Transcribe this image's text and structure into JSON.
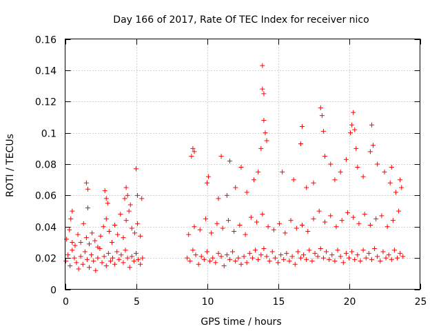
{
  "chart_data": {
    "type": "scatter",
    "title": "Day 166 of 2017, Rate Of TEC Index for receiver nico",
    "xlabel": "GPS time / hours",
    "ylabel": "ROTI / TECUs",
    "xlim": [
      0,
      25
    ],
    "ylim": [
      0,
      0.16
    ],
    "x_ticks": [
      0,
      5,
      10,
      15,
      20,
      25
    ],
    "x_tick_labels": [
      "0",
      "5",
      "10",
      "15",
      "20",
      "25"
    ],
    "y_ticks": [
      0,
      0.02,
      0.04,
      0.06,
      0.08,
      0.1,
      0.12,
      0.14,
      0.16
    ],
    "y_tick_labels": [
      "0",
      "0.02",
      "0.04",
      "0.06",
      "0.08",
      "0.1",
      "0.12",
      "0.14",
      "0.16"
    ],
    "grid": true,
    "legend": false,
    "marker": "+",
    "color": "#ff0000",
    "data_gap_hours": [
      5.6,
      8.5
    ],
    "series": [
      {
        "x": [
          0.05,
          0.2,
          0.35,
          0.5,
          0.65,
          0.8,
          0.95,
          1.1,
          1.25,
          1.4,
          1.55,
          1.7,
          1.85,
          2.0,
          2.15,
          2.3,
          2.45,
          2.6,
          2.75,
          2.9,
          3.05,
          3.2,
          3.35,
          3.5,
          3.65,
          3.8,
          3.95,
          4.1,
          4.25,
          4.4,
          4.55,
          4.7,
          4.85,
          5.0,
          5.15,
          5.3,
          5.45,
          0.1,
          0.3,
          0.5,
          0.7,
          0.9,
          1.1,
          1.3,
          1.5,
          1.7,
          1.9,
          2.1,
          2.3,
          2.5,
          2.7,
          2.9,
          3.1,
          3.3,
          3.5,
          3.7,
          3.9,
          4.1,
          4.3,
          4.5,
          4.7,
          4.9,
          5.1,
          5.3,
          0.4,
          0.5,
          1.5,
          1.6,
          1.6,
          2.8,
          2.9,
          3.0,
          4.2,
          4.3,
          4.4,
          4.6,
          5.0,
          5.1,
          5.4,
          8.6,
          8.8,
          9.0,
          9.2,
          9.4,
          9.6,
          9.8,
          10.0,
          10.2,
          10.4,
          10.6,
          10.8,
          11.0,
          11.2,
          11.4,
          11.6,
          11.8,
          12.0,
          12.2,
          12.4,
          12.6,
          12.8,
          13.0,
          13.2,
          13.4,
          13.6,
          13.8,
          14.0,
          14.2,
          14.4,
          14.6,
          14.8,
          15.0,
          15.2,
          15.4,
          15.6,
          15.8,
          16.0,
          16.2,
          16.4,
          16.6,
          16.8,
          17.0,
          17.2,
          17.4,
          17.6,
          17.8,
          18.0,
          18.2,
          18.4,
          18.6,
          18.8,
          19.0,
          19.2,
          19.4,
          19.6,
          19.8,
          20.0,
          20.2,
          20.4,
          20.6,
          20.8,
          21.0,
          21.2,
          21.4,
          21.6,
          21.8,
          22.0,
          22.2,
          22.4,
          22.6,
          22.8,
          23.0,
          23.2,
          23.4,
          23.6,
          23.8,
          8.7,
          9.1,
          9.5,
          9.9,
          10.3,
          10.7,
          11.1,
          11.5,
          11.9,
          12.3,
          12.7,
          13.1,
          13.5,
          13.9,
          14.3,
          14.7,
          15.1,
          15.5,
          15.9,
          16.3,
          16.7,
          17.1,
          17.5,
          17.9,
          18.3,
          18.7,
          19.1,
          19.5,
          19.9,
          20.3,
          20.7,
          21.1,
          21.5,
          21.9,
          22.3,
          22.7,
          23.1,
          23.5,
          8.9,
          9.0,
          9.1,
          10.0,
          10.1,
          10.8,
          11.0,
          11.4,
          11.6,
          12.0,
          12.4,
          12.8,
          13.3,
          13.6,
          13.8,
          13.9,
          13.9,
          14.0,
          14.0,
          14.1,
          14.2,
          15.3,
          16.1,
          16.6,
          16.7,
          17.0,
          17.5,
          18.0,
          18.1,
          18.2,
          18.3,
          18.7,
          19.0,
          19.4,
          19.8,
          20.1,
          20.2,
          20.3,
          20.4,
          20.5,
          20.6,
          21.0,
          21.5,
          21.6,
          21.7,
          22.0,
          22.5,
          22.9,
          23.0,
          23.3,
          23.6,
          23.7
        ],
        "y": [
          0.018,
          0.022,
          0.015,
          0.025,
          0.02,
          0.017,
          0.013,
          0.021,
          0.016,
          0.024,
          0.019,
          0.014,
          0.022,
          0.018,
          0.012,
          0.02,
          0.026,
          0.017,
          0.021,
          0.015,
          0.023,
          0.018,
          0.02,
          0.016,
          0.024,
          0.019,
          0.022,
          0.017,
          0.025,
          0.02,
          0.014,
          0.021,
          0.018,
          0.023,
          0.019,
          0.016,
          0.02,
          0.032,
          0.038,
          0.03,
          0.028,
          0.035,
          0.03,
          0.042,
          0.033,
          0.029,
          0.036,
          0.031,
          0.027,
          0.034,
          0.04,
          0.045,
          0.037,
          0.03,
          0.041,
          0.035,
          0.048,
          0.033,
          0.044,
          0.05,
          0.039,
          0.036,
          0.042,
          0.034,
          0.045,
          0.05,
          0.068,
          0.064,
          0.052,
          0.063,
          0.058,
          0.055,
          0.058,
          0.065,
          0.06,
          0.054,
          0.077,
          0.06,
          0.058,
          0.02,
          0.018,
          0.025,
          0.022,
          0.016,
          0.021,
          0.019,
          0.024,
          0.018,
          0.02,
          0.017,
          0.023,
          0.021,
          0.015,
          0.022,
          0.019,
          0.024,
          0.018,
          0.02,
          0.016,
          0.021,
          0.017,
          0.023,
          0.02,
          0.025,
          0.019,
          0.022,
          0.026,
          0.021,
          0.018,
          0.024,
          0.02,
          0.017,
          0.022,
          0.019,
          0.023,
          0.018,
          0.021,
          0.016,
          0.024,
          0.02,
          0.022,
          0.019,
          0.025,
          0.018,
          0.023,
          0.021,
          0.026,
          0.02,
          0.024,
          0.019,
          0.022,
          0.018,
          0.025,
          0.021,
          0.017,
          0.023,
          0.02,
          0.024,
          0.019,
          0.022,
          0.018,
          0.025,
          0.02,
          0.023,
          0.019,
          0.026,
          0.021,
          0.018,
          0.024,
          0.02,
          0.022,
          0.019,
          0.025,
          0.02,
          0.023,
          0.021,
          0.035,
          0.04,
          0.038,
          0.045,
          0.036,
          0.042,
          0.039,
          0.044,
          0.037,
          0.041,
          0.035,
          0.046,
          0.043,
          0.048,
          0.04,
          0.038,
          0.042,
          0.036,
          0.044,
          0.039,
          0.041,
          0.037,
          0.045,
          0.05,
          0.043,
          0.047,
          0.04,
          0.044,
          0.049,
          0.046,
          0.042,
          0.048,
          0.041,
          0.045,
          0.047,
          0.04,
          0.044,
          0.05,
          0.085,
          0.09,
          0.088,
          0.068,
          0.072,
          0.058,
          0.085,
          0.06,
          0.082,
          0.065,
          0.078,
          0.062,
          0.07,
          0.075,
          0.09,
          0.143,
          0.128,
          0.125,
          0.108,
          0.1,
          0.095,
          0.075,
          0.07,
          0.093,
          0.104,
          0.065,
          0.068,
          0.116,
          0.111,
          0.101,
          0.085,
          0.08,
          0.07,
          0.075,
          0.083,
          0.1,
          0.105,
          0.113,
          0.102,
          0.09,
          0.078,
          0.072,
          0.088,
          0.105,
          0.092,
          0.08,
          0.075,
          0.068,
          0.078,
          0.062,
          0.07,
          0.065
        ]
      }
    ]
  }
}
